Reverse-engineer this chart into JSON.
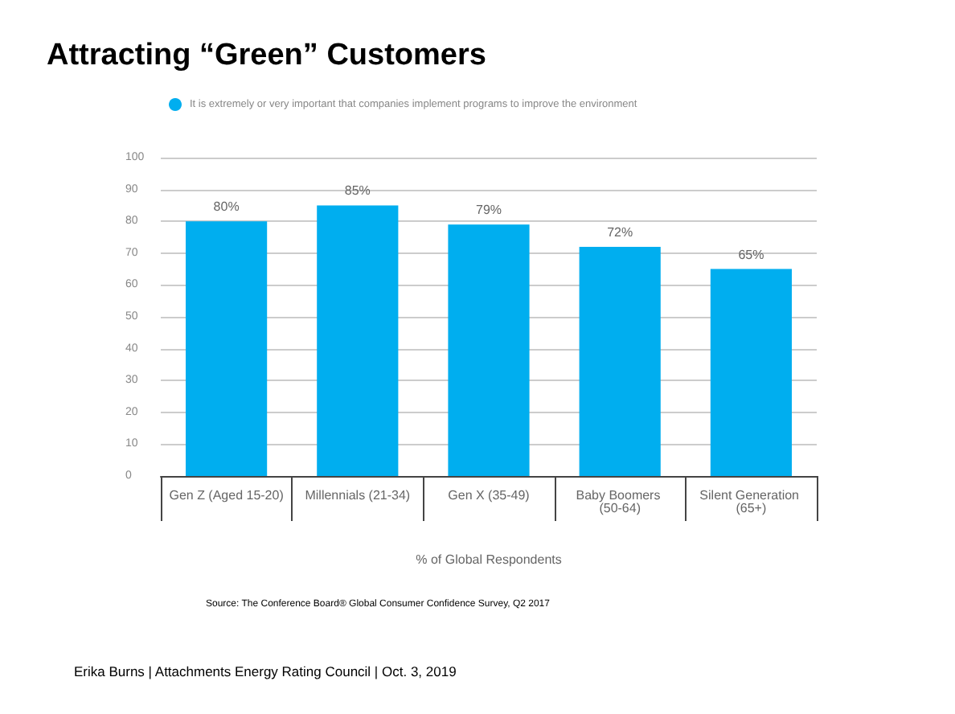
{
  "chart_data": {
    "type": "bar",
    "title": "Attracting “Green” Customers",
    "xlabel": "% of Global Respondents",
    "categories": [
      "Gen Z (Aged 15-20)",
      "Millennials (21-34)",
      "Gen X (35-49)",
      "Baby Boomers (50-64)",
      "Silent Generation (65+)"
    ],
    "series": [
      {
        "name": "It is extremely or very important that companies implement programs to improve the environment",
        "color": "#00aeef",
        "values": [
          80,
          85,
          79,
          72,
          65
        ],
        "value_labels": [
          "80%",
          "85%",
          "79%",
          "72%",
          "65%"
        ]
      }
    ],
    "ylim": [
      0,
      100
    ],
    "yticks": [
      0,
      10,
      20,
      30,
      40,
      50,
      60,
      70,
      80,
      90,
      100
    ],
    "grid": "y",
    "legend": "top left",
    "annotations": [
      "Source: The Conference Board® Global Consumer Confidence Survey, Q2 2017",
      "Erika Burns | Attachments Energy Rating Council | Oct. 3, 2019"
    ]
  }
}
